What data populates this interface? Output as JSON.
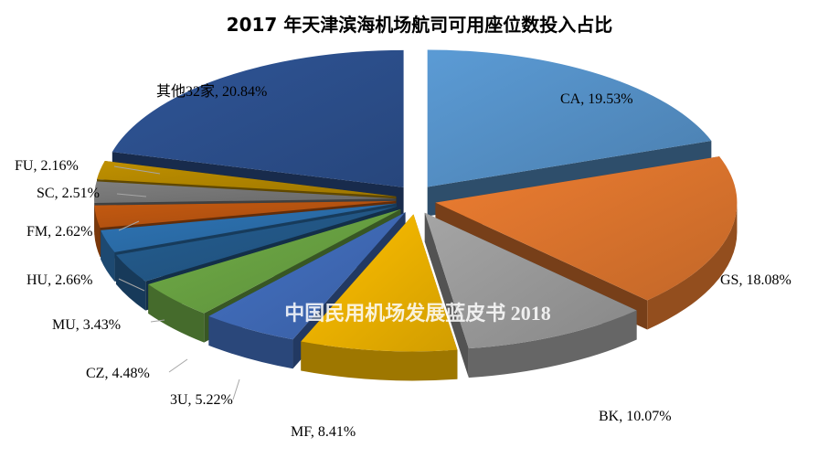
{
  "chart_data": {
    "type": "pie",
    "title": "2017 年天津滨海机场航司可用座位数投入占比",
    "watermark": "中国民用机场发展蓝皮书 2018",
    "slices": [
      {
        "label": "CA, 19.53%",
        "name": "CA",
        "value": 19.53,
        "color": "#5b9bd5"
      },
      {
        "label": "GS, 18.08%",
        "name": "GS",
        "value": 18.08,
        "color": "#ed7d31"
      },
      {
        "label": "BK, 10.07%",
        "name": "BK",
        "value": 10.07,
        "color": "#a5a5a5"
      },
      {
        "label": "MF, 8.41%",
        "name": "MF",
        "value": 8.41,
        "color": "#ffc000"
      },
      {
        "label": "3U, 5.22%",
        "name": "3U",
        "value": 5.22,
        "color": "#4472c4"
      },
      {
        "label": "CZ, 4.48%",
        "name": "CZ",
        "value": 4.48,
        "color": "#70ad47"
      },
      {
        "label": "MU, 3.43%",
        "name": "MU",
        "value": 3.43,
        "color": "#255e91"
      },
      {
        "label": "HU, 2.66%",
        "name": "HU",
        "value": 2.66,
        "color": "#2e75b6"
      },
      {
        "label": "FM, 2.62%",
        "name": "FM",
        "value": 2.62,
        "color": "#c55a11"
      },
      {
        "label": "SC, 2.51%",
        "name": "SC",
        "value": 2.51,
        "color": "#7f7f7f"
      },
      {
        "label": "FU, 2.16%",
        "name": "FU",
        "value": 2.16,
        "color": "#bf9000"
      },
      {
        "label": "其他32家, 20.84%",
        "name": "其他32家",
        "value": 20.84,
        "color": "#2f5597"
      }
    ],
    "legend": "none"
  }
}
